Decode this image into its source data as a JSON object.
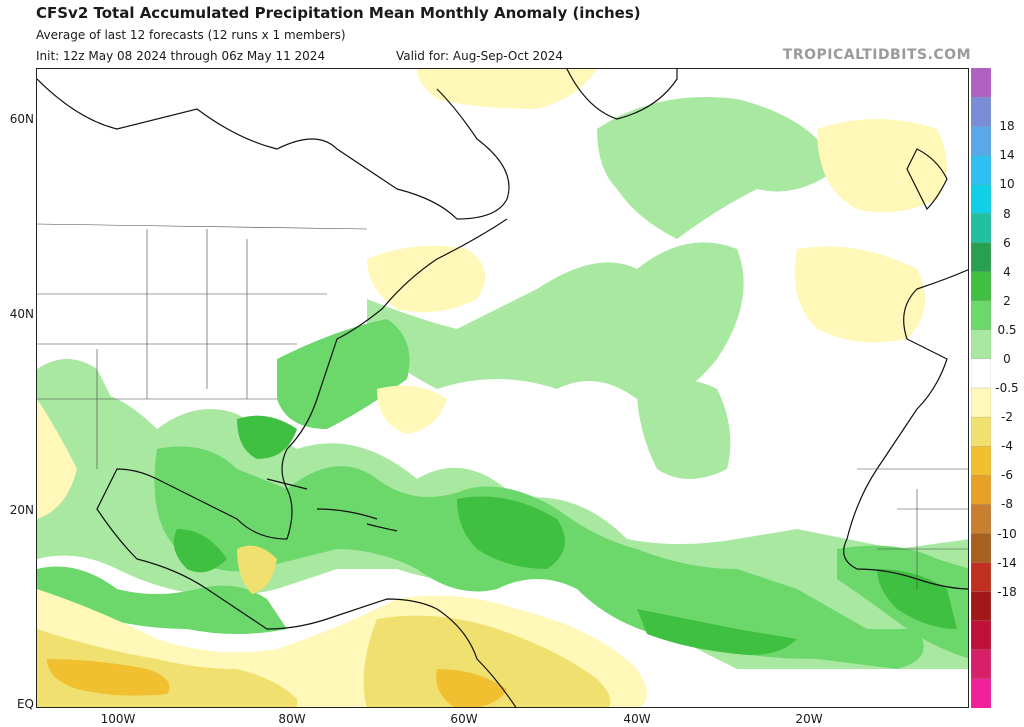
{
  "header": {
    "title": "CFSv2 Total Accumulated Precipitation Mean Monthly Anomaly (inches)",
    "subtitle": "Average of last 12 forecasts (12 runs x 1 members)",
    "init": "Init: 12z May 08 2024 through 06z May 11 2024",
    "valid": "Valid for: Aug-Sep-Oct 2024",
    "brand": "TROPICALTIDBITS.COM"
  },
  "map": {
    "region": "North Atlantic",
    "lat_labels": [
      "60N",
      "40N",
      "20N",
      "EQ"
    ],
    "lon_labels": [
      "100W",
      "80W",
      "60W",
      "40W",
      "20W"
    ]
  },
  "legend": {
    "labels": [
      "18",
      "14",
      "10",
      "8",
      "6",
      "4",
      "2",
      "0.5",
      "0",
      "-0.5",
      "-2",
      "-4",
      "-6",
      "-8",
      "-10",
      "-14",
      "-18"
    ],
    "colors": [
      "#b060c0",
      "#7a8ed8",
      "#5aa8e8",
      "#2ec0f0",
      "#10d0e8",
      "#20c0a0",
      "#28a050",
      "#40c040",
      "#6cd86c",
      "#a8e8a0",
      "#ffffff",
      "#fff8b8",
      "#f0e070",
      "#f0c030",
      "#e8a028",
      "#c88030",
      "#a86020",
      "#c03020",
      "#a01818",
      "#c0103a",
      "#d8206a",
      "#f0209a"
    ]
  },
  "chart_data": {
    "type": "heatmap",
    "title": "CFSv2 Total Accumulated Precipitation Mean Monthly Anomaly (inches)",
    "colorbar_ticks": [
      18,
      14,
      10,
      8,
      6,
      4,
      2,
      0.5,
      0,
      -0.5,
      -2,
      -4,
      -6,
      -8,
      -10,
      -14,
      -18
    ],
    "lat_ticks": [
      "60N",
      "40N",
      "20N",
      "EQ"
    ],
    "lon_ticks": [
      "100W",
      "80W",
      "60W",
      "40W",
      "20W"
    ]
  }
}
